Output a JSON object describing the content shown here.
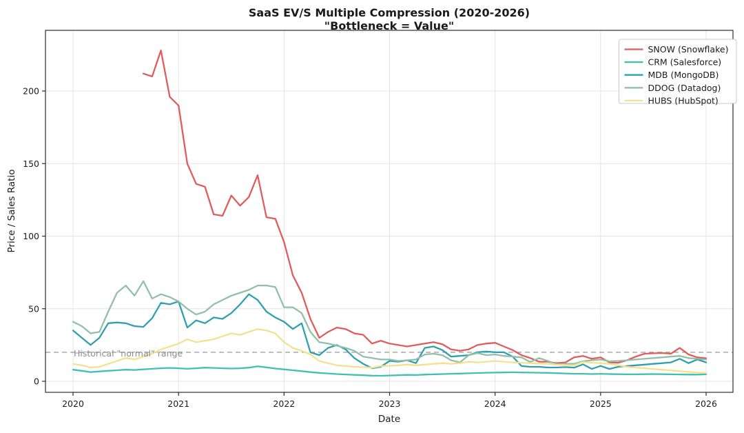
{
  "chart_data": {
    "type": "line",
    "title": "SaaS EV/S Multiple Compression (2020-2026)",
    "subtitle": "\"Bottleneck = Value\"",
    "xlabel": "Date",
    "ylabel": "Price / Sales Ratio",
    "x_start": "2020-01",
    "x_freq": "monthly",
    "x_tick_labels": [
      "2020",
      "2021",
      "2022",
      "2023",
      "2024",
      "2025",
      "2026"
    ],
    "x_tick_month_indices": [
      0,
      12,
      24,
      36,
      48,
      60,
      72
    ],
    "y_ticks": [
      0,
      50,
      100,
      150,
      200
    ],
    "ylim": [
      -8,
      242
    ],
    "xlim_months": [
      -3.1,
      75.1
    ],
    "grid": true,
    "legend_position": "upper right",
    "reference_line": {
      "value": 20,
      "label": "Historical \"normal\" range",
      "style": "dashed",
      "color": "#a0a0a0"
    },
    "colors": {
      "grid": "#e4e4e4",
      "spine": "#2b2b2b",
      "annotation": "#8c8c8c",
      "legend_border": "#c9c9c9",
      "background": "#ffffff"
    },
    "series": [
      {
        "name": "SNOW (Snowflake)",
        "ticker": "SNOW",
        "color": "#e05c5c",
        "values": [
          null,
          null,
          null,
          null,
          null,
          null,
          null,
          null,
          212,
          210,
          228,
          196,
          190,
          150,
          136,
          134,
          115,
          114,
          128,
          121,
          127,
          142,
          113,
          112,
          96,
          73,
          61,
          43,
          30,
          34,
          37,
          36,
          33,
          32,
          26,
          28,
          26,
          25,
          24,
          25,
          26,
          27,
          25.5,
          22,
          21,
          22,
          25,
          26,
          26.5,
          24,
          21.5,
          18,
          16,
          13.5,
          13.5,
          12.5,
          13,
          16.5,
          17.5,
          15.5,
          16.5,
          13,
          12.8,
          14.5,
          17,
          19,
          19.3,
          19.5,
          19,
          23,
          18.5,
          16.5,
          15.8
        ]
      },
      {
        "name": "CRM (Salesforce)",
        "ticker": "CRM",
        "color": "#3fc1af",
        "values": [
          8,
          7.2,
          6.3,
          6.8,
          7.2,
          7.6,
          8,
          7.8,
          8.2,
          8.6,
          9,
          9.2,
          9,
          8.6,
          9,
          9.4,
          9.2,
          9,
          8.8,
          9,
          9.4,
          10.3,
          9.6,
          8.8,
          8.2,
          7.6,
          7,
          6.3,
          5.8,
          5.4,
          5,
          4.7,
          4.4,
          4.2,
          3.9,
          3.8,
          4,
          4.2,
          4.4,
          4.3,
          4.6,
          4.8,
          5,
          5.2,
          5.3,
          5.5,
          5.7,
          5.9,
          6,
          6.1,
          6.2,
          6.1,
          6,
          5.9,
          5.8,
          5.6,
          5.4,
          5.2,
          5.2,
          5,
          5.2,
          5,
          4.9,
          4.8,
          4.8,
          4.9,
          5,
          4.9,
          4.8,
          4.7,
          4.6,
          4.6,
          4.8
        ]
      },
      {
        "name": "MDB (MongoDB)",
        "ticker": "MDB",
        "color": "#2f9fb0",
        "values": [
          35,
          30,
          25,
          30,
          40,
          40.5,
          40,
          38,
          37.5,
          43.5,
          54,
          53,
          55,
          37,
          42,
          40,
          44,
          43,
          47,
          53,
          60,
          56,
          48,
          44,
          41,
          36,
          40,
          20,
          18,
          23,
          25,
          22,
          16,
          12,
          9,
          10,
          14,
          13.5,
          14.5,
          12.5,
          23,
          24,
          21.5,
          17,
          17.5,
          18,
          20,
          20.5,
          20,
          20,
          17,
          10.5,
          10,
          10,
          9.5,
          9.5,
          9.8,
          9.4,
          11.7,
          8.5,
          10.6,
          8.5,
          10,
          10.5,
          11,
          11.5,
          12,
          12.5,
          13,
          15.5,
          12.5,
          15,
          13
        ]
      },
      {
        "name": "DDOG (Datadog)",
        "ticker": "DDOG",
        "color": "#92bfa7",
        "values": [
          41,
          38,
          33,
          34,
          48,
          61,
          66,
          59,
          69,
          57,
          60,
          58,
          55,
          50,
          46,
          48,
          53,
          56,
          59,
          61,
          63,
          66,
          66,
          65,
          51,
          51,
          47,
          34,
          27,
          26,
          24.5,
          23,
          21,
          17,
          16,
          15,
          15,
          14,
          14.5,
          15,
          18.5,
          19,
          18,
          14.5,
          13,
          18,
          19.5,
          18,
          18.5,
          17.5,
          17,
          16.5,
          13.3,
          16,
          14,
          11.7,
          12,
          12,
          13.8,
          14.5,
          15,
          13.8,
          14,
          14.5,
          15,
          15.5,
          16,
          16.5,
          17,
          17.5,
          16,
          15.5,
          15
        ]
      },
      {
        "name": "HUBS (HubSpot)",
        "ticker": "HUBS",
        "color": "#f4e18f",
        "values": [
          12,
          11,
          9.5,
          10,
          12,
          14,
          16,
          15,
          17,
          19,
          22,
          24,
          26,
          29,
          27,
          28,
          29,
          31,
          33,
          32,
          34,
          36,
          35,
          33,
          27,
          23,
          21,
          18.5,
          14,
          12.5,
          11,
          10.5,
          10,
          9.8,
          9.3,
          10.5,
          10.7,
          11,
          11.5,
          11,
          11.5,
          12,
          12.5,
          12,
          12.5,
          13.5,
          13,
          13.5,
          14,
          13.5,
          13,
          12.8,
          12.5,
          12.2,
          12,
          11.5,
          11.2,
          11,
          13.3,
          12.8,
          12.5,
          12,
          11,
          10,
          9.5,
          9,
          8.5,
          8,
          7.5,
          7,
          6.5,
          6,
          5.7
        ]
      }
    ]
  }
}
